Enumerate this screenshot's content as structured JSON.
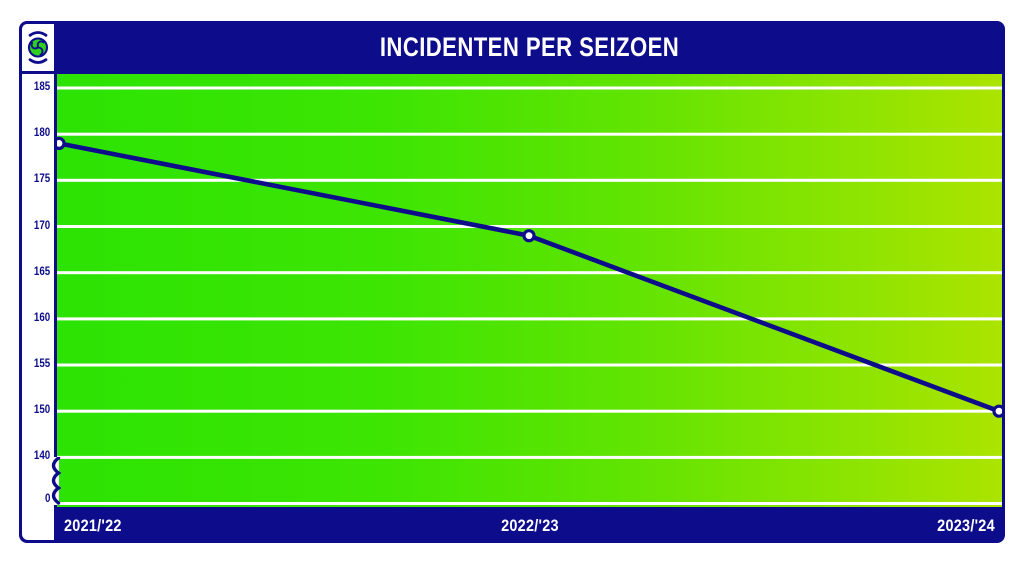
{
  "logo": {
    "name": "football-logo",
    "ball_color": "#2fcf1e",
    "arc_color": "#0d0c8b"
  },
  "chart_data": {
    "type": "line",
    "title": "INCIDENTEN PER SEIZOEN",
    "categories": [
      "2021/'22",
      "2022/'23",
      "2023/'24"
    ],
    "series": [
      {
        "name": "Incidenten",
        "values": [
          179,
          169,
          150
        ]
      }
    ],
    "y_ticks": [
      185,
      180,
      175,
      170,
      165,
      160,
      155,
      150,
      140,
      0
    ],
    "has_axis_break": true,
    "axis_break_between": [
      0,
      140
    ],
    "grid": true,
    "legend_position": "none",
    "xlabel": "",
    "ylabel": "",
    "colors": {
      "frame_navy": "#0d0c8b",
      "plot_gradient_left": "#2ce303",
      "plot_gradient_right": "#abe400",
      "gridline": "#ffffff",
      "line": "#0d0c8b",
      "marker_fill": "#ffffff",
      "marker_ring": "#0d0c8b",
      "title_text": "#ffffff",
      "y_tick_text": "#0d0c8b",
      "x_tick_text": "#ffffff"
    }
  }
}
